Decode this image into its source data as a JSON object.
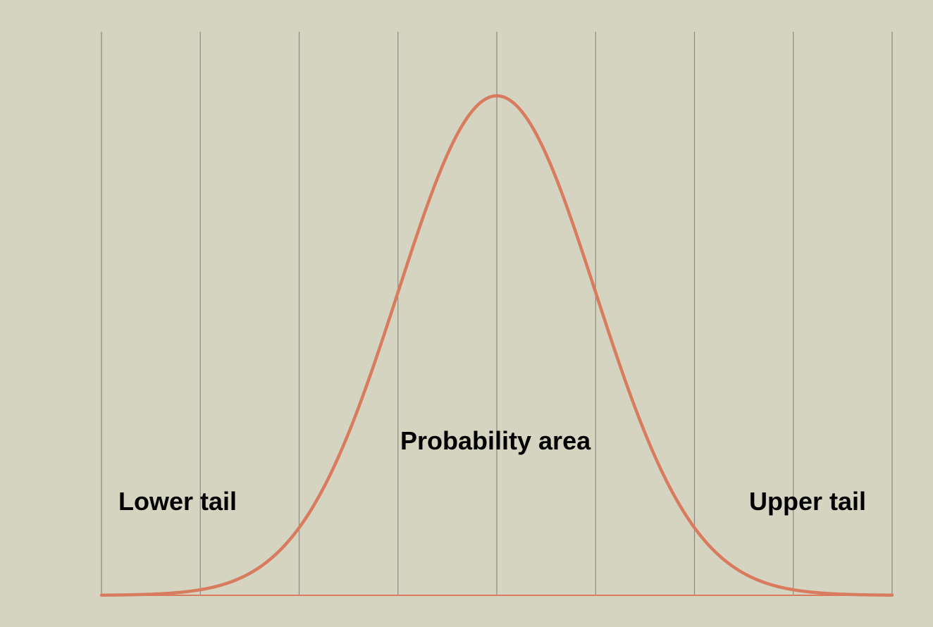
{
  "colors": {
    "background": "#d4d4c0",
    "curve": "#d97b5f",
    "gridline": "#8a8a82"
  },
  "chart_data": {
    "type": "line",
    "title": "",
    "xlabel": "",
    "ylabel": "",
    "xlim": [
      -4,
      4
    ],
    "ylim": [
      0,
      0.4
    ],
    "grid": "vertical",
    "gridlines_x": [
      -4,
      -3,
      -2,
      -1,
      0,
      1,
      2,
      3,
      4
    ],
    "series": [
      {
        "type": "normal-density",
        "mean": 0,
        "sd": 1
      }
    ],
    "annotations": [
      {
        "key": "lower_tail",
        "text": "Lower tail"
      },
      {
        "key": "probability_area",
        "text": "Probability area"
      },
      {
        "key": "upper_tail",
        "text": "Upper tail"
      }
    ]
  }
}
